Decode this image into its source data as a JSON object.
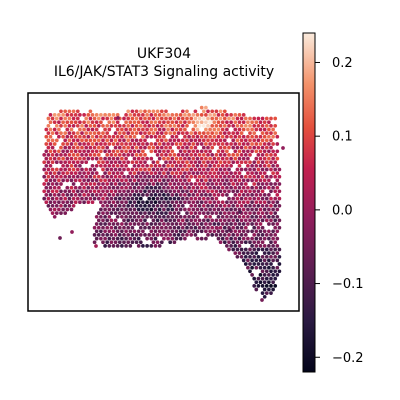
{
  "chart_data": {
    "type": "heatmap",
    "title_line1": "UKF304",
    "title_line2": "IL6/JAK/STAT3 Signaling activity",
    "xlabel": "",
    "ylabel": "",
    "grid": false,
    "colorbar": {
      "colormap": "rocket",
      "min": -0.22,
      "max": 0.24,
      "ticks": [
        0.2,
        0.1,
        0.0,
        -0.1,
        -0.2
      ],
      "tick_labels": [
        "0.2",
        "0.1",
        "0.0",
        "−0.1",
        "−0.2"
      ]
    }
  }
}
